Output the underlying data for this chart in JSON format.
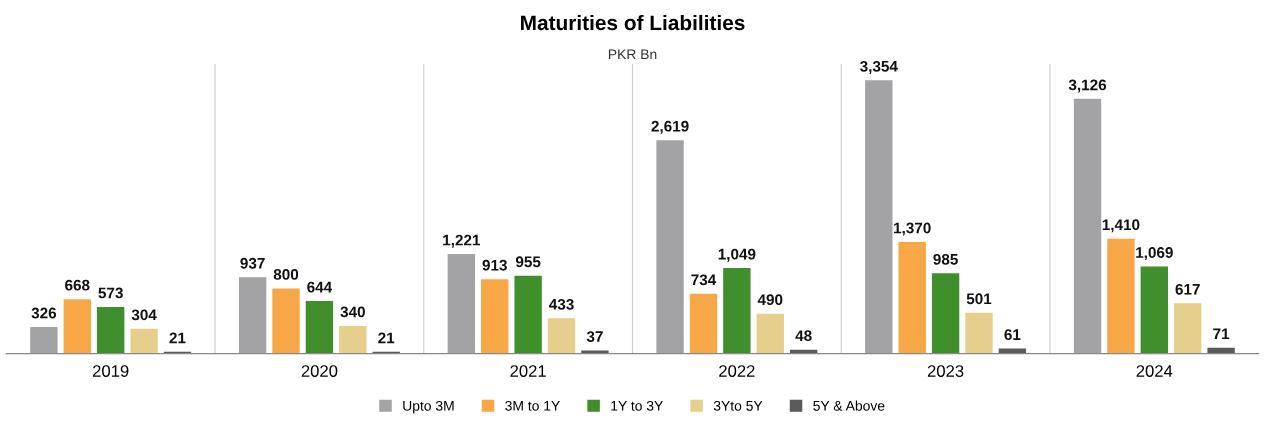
{
  "chart_data": {
    "type": "bar",
    "title": "Maturities of Liabilities",
    "subtitle": "PKR Bn",
    "categories": [
      "2019",
      "2020",
      "2021",
      "2022",
      "2023",
      "2024"
    ],
    "series": [
      {
        "name": "Upto 3M",
        "color": "#a3a3a5",
        "values": [
          326,
          937,
          1221,
          2619,
          3354,
          3126
        ],
        "value_labels": [
          "326",
          "937",
          "1,221",
          "2,619",
          "3,354",
          "3,126"
        ]
      },
      {
        "name": "3M to 1Y",
        "color": "#f7a745",
        "values": [
          668,
          800,
          913,
          734,
          1370,
          1410
        ],
        "value_labels": [
          "668",
          "800",
          "913",
          "734",
          "1,370",
          "1,410"
        ]
      },
      {
        "name": "1Y to 3Y",
        "color": "#3f8f2c",
        "values": [
          573,
          644,
          955,
          1049,
          985,
          1069
        ],
        "value_labels": [
          "573",
          "644",
          "955",
          "1,049",
          "985",
          "1,069"
        ]
      },
      {
        "name": "3Yto 5Y",
        "color": "#e6cf8c",
        "values": [
          304,
          340,
          433,
          490,
          501,
          617
        ],
        "value_labels": [
          "304",
          "340",
          "433",
          "490",
          "501",
          "617"
        ]
      },
      {
        "name": "5Y & Above",
        "color": "#5a5a5a",
        "values": [
          21,
          21,
          37,
          48,
          61,
          71
        ],
        "value_labels": [
          "21",
          "21",
          "37",
          "48",
          "61",
          "71"
        ]
      }
    ],
    "legend": "bottom"
  }
}
